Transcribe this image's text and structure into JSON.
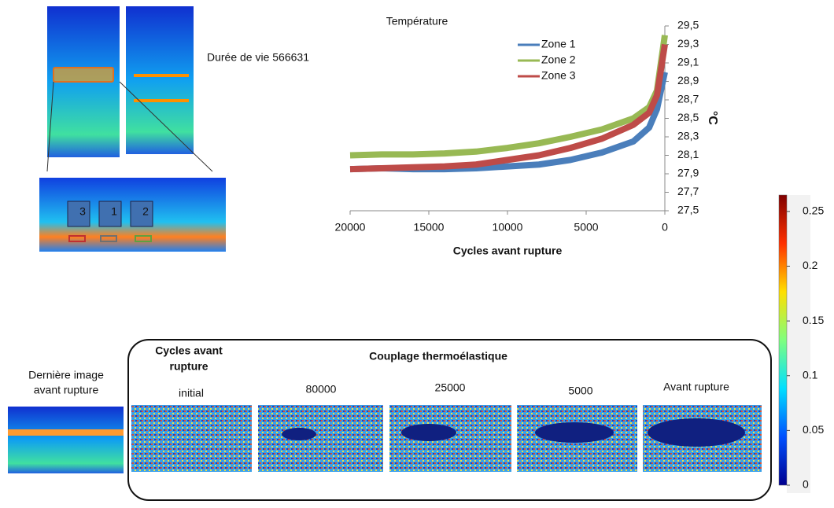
{
  "chart_data": [
    {
      "type": "line",
      "title": "Température",
      "xlabel": "Cycles avant rupture",
      "ylabel": "°C",
      "x": [
        20000,
        18000,
        16000,
        14000,
        12000,
        10000,
        8000,
        6000,
        4000,
        2000,
        1000,
        500,
        0
      ],
      "series": [
        {
          "name": "Zone 1",
          "color": "#4a7ebb",
          "values": [
            27.95,
            27.96,
            27.95,
            27.95,
            27.96,
            27.98,
            28.0,
            28.05,
            28.13,
            28.25,
            28.4,
            28.6,
            29.0
          ]
        },
        {
          "name": "Zone 2",
          "color": "#98b954",
          "values": [
            28.1,
            28.11,
            28.11,
            28.12,
            28.14,
            28.18,
            28.23,
            28.3,
            28.38,
            28.5,
            28.62,
            28.8,
            29.4
          ]
        },
        {
          "name": "Zone 3",
          "color": "#be4b48",
          "values": [
            27.95,
            27.96,
            27.97,
            27.98,
            28.0,
            28.05,
            28.1,
            28.18,
            28.28,
            28.43,
            28.56,
            28.75,
            29.3
          ]
        }
      ],
      "xlim": [
        20000,
        0
      ],
      "xticks": [
        20000,
        15000,
        10000,
        5000,
        0
      ],
      "ylim": [
        27.5,
        29.5
      ],
      "yticks": [
        {
          "value": 27.5,
          "label": "27,5"
        },
        {
          "value": 27.7,
          "label": "27,7"
        },
        {
          "value": 27.9,
          "label": "27,9"
        },
        {
          "value": 28.1,
          "label": "28,1"
        },
        {
          "value": 28.3,
          "label": "28,3"
        },
        {
          "value": 28.5,
          "label": "28,5"
        },
        {
          "value": 28.7,
          "label": "28,7"
        },
        {
          "value": 28.9,
          "label": "28,9"
        },
        {
          "value": 29.1,
          "label": "29,1"
        },
        {
          "value": 29.3,
          "label": "29,3"
        },
        {
          "value": 29.5,
          "label": "29,5"
        }
      ]
    },
    {
      "type": "colorbar",
      "ylim": [
        0,
        0.265
      ],
      "yticks": [
        0,
        0.05,
        0.1,
        0.15,
        0.2,
        0.25
      ],
      "colors": [
        "#00008f",
        "#0050ff",
        "#00dfff",
        "#7fff7f",
        "#ffdf00",
        "#ff3000",
        "#800000"
      ]
    }
  ],
  "figure": {
    "lifetime_label": "Durée de vie 566631",
    "zone_labels": [
      "3",
      "1",
      "2"
    ],
    "last_image_label": [
      "Dernière image",
      "avant rupture"
    ],
    "cycles_label": [
      "Cycles avant",
      "rupture"
    ],
    "panel_title": "Couplage thermoélastique",
    "panels": [
      "initial",
      "80000",
      "25000",
      "5000",
      "Avant rupture"
    ]
  }
}
